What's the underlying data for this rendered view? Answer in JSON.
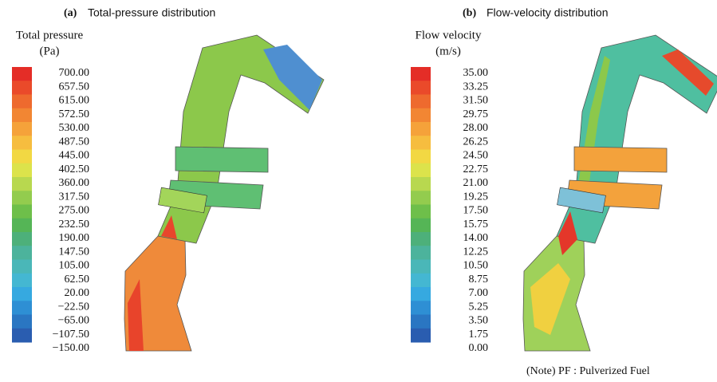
{
  "panels": [
    {
      "label": "(a)",
      "title": "Total-pressure distribution",
      "legend_title": [
        "Total pressure",
        "(Pa)"
      ],
      "ticks": [
        "700.00",
        "657.50",
        "615.00",
        "572.50",
        "530.00",
        "487.50",
        "445.00",
        "402.50",
        "360.00",
        "317.50",
        "275.00",
        "232.50",
        "190.00",
        "147.50",
        "105.00",
        "62.50",
        "20.00",
        "−22.50",
        "−65.00",
        "−107.50",
        "−150.00"
      ]
    },
    {
      "label": "(b)",
      "title": "Flow-velocity distribution",
      "legend_title": [
        "Flow velocity",
        "(m/s)"
      ],
      "ticks": [
        "35.00",
        "33.25",
        "31.50",
        "29.75",
        "28.00",
        "26.25",
        "24.50",
        "22.75",
        "21.00",
        "19.25",
        "17.50",
        "15.75",
        "14.00",
        "12.25",
        "10.50",
        "8.75",
        "7.00",
        "5.25",
        "3.50",
        "1.75",
        "0.00"
      ]
    }
  ],
  "note": "(Note)   PF : Pulverized Fuel"
}
